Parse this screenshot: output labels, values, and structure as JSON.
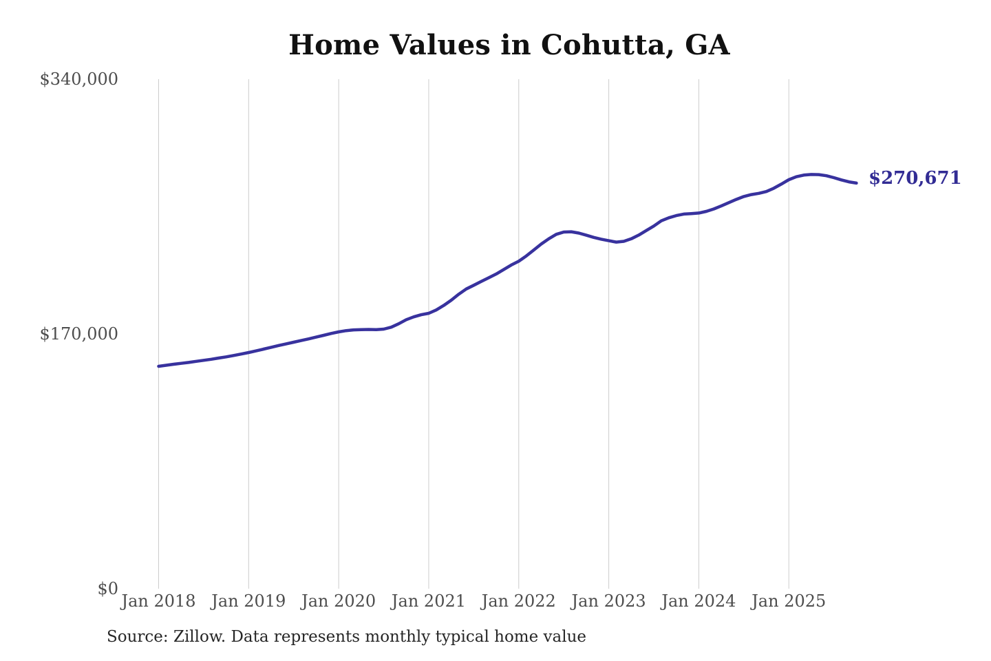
{
  "page": {
    "background": "#ffffff"
  },
  "source_note": "Source: Zillow. Data represents monthly typical home value",
  "colors": {
    "title": "#111111",
    "tick": "#4d4d4d",
    "source": "#262626",
    "gridline": "#cccccc",
    "line": "#38329e",
    "end_label": "#322c94"
  },
  "chart_data": {
    "type": "line",
    "title": "Home Values in Cohutta, GA",
    "series_name": "Monthly typical home value",
    "xlabel": "",
    "ylabel": "",
    "ylim": [
      0,
      340000
    ],
    "grid": "vertical-only",
    "legend": "none",
    "end_label": "$270,671",
    "end_value": 270671,
    "y_ticks": [
      {
        "label": "$340,000",
        "value": 340000
      },
      {
        "label": "$170,000",
        "value": 170000
      },
      {
        "label": "$0",
        "value": 0
      }
    ],
    "x_ticks": [
      {
        "label": "Jan 2018",
        "month_index": 0
      },
      {
        "label": "Jan 2019",
        "month_index": 12
      },
      {
        "label": "Jan 2020",
        "month_index": 24
      },
      {
        "label": "Jan 2021",
        "month_index": 36
      },
      {
        "label": "Jan 2022",
        "month_index": 48
      },
      {
        "label": "Jan 2023",
        "month_index": 60
      },
      {
        "label": "Jan 2024",
        "month_index": 72
      },
      {
        "label": "Jan 2025",
        "month_index": 84
      }
    ],
    "x": [
      "2018-01",
      "2018-02",
      "2018-03",
      "2018-04",
      "2018-05",
      "2018-06",
      "2018-07",
      "2018-08",
      "2018-09",
      "2018-10",
      "2018-11",
      "2018-12",
      "2019-01",
      "2019-02",
      "2019-03",
      "2019-04",
      "2019-05",
      "2019-06",
      "2019-07",
      "2019-08",
      "2019-09",
      "2019-10",
      "2019-11",
      "2019-12",
      "2020-01",
      "2020-02",
      "2020-03",
      "2020-04",
      "2020-05",
      "2020-06",
      "2020-07",
      "2020-08",
      "2020-09",
      "2020-10",
      "2020-11",
      "2020-12",
      "2021-01",
      "2021-02",
      "2021-03",
      "2021-04",
      "2021-05",
      "2021-06",
      "2021-07",
      "2021-08",
      "2021-09",
      "2021-10",
      "2021-11",
      "2021-12",
      "2022-01",
      "2022-02",
      "2022-03",
      "2022-04",
      "2022-05",
      "2022-06",
      "2022-07",
      "2022-08",
      "2022-09",
      "2022-10",
      "2022-11",
      "2022-12",
      "2023-01",
      "2023-02",
      "2023-03",
      "2023-04",
      "2023-05",
      "2023-06",
      "2023-07",
      "2023-08",
      "2023-09",
      "2023-10",
      "2023-11",
      "2023-12",
      "2024-01",
      "2024-02",
      "2024-03",
      "2024-04",
      "2024-05",
      "2024-06",
      "2024-07",
      "2024-08",
      "2024-09",
      "2024-10",
      "2024-11",
      "2024-12",
      "2025-01",
      "2025-02",
      "2025-03",
      "2025-04",
      "2025-05",
      "2025-06",
      "2025-07",
      "2025-08",
      "2025-09",
      "2025-10"
    ],
    "values": [
      148400,
      149100,
      149800,
      150400,
      151000,
      151700,
      152400,
      153100,
      153900,
      154700,
      155600,
      156600,
      157600,
      158700,
      159900,
      161100,
      162300,
      163400,
      164500,
      165600,
      166700,
      167900,
      169100,
      170300,
      171400,
      172200,
      172700,
      172900,
      173000,
      172900,
      173200,
      174500,
      176800,
      179500,
      181400,
      182800,
      183800,
      186000,
      189000,
      192500,
      196500,
      200000,
      202500,
      205000,
      207500,
      210000,
      213000,
      216000,
      218500,
      222000,
      226000,
      230000,
      233500,
      236500,
      238000,
      238200,
      237300,
      235900,
      234400,
      233200,
      232200,
      231300,
      231800,
      233500,
      236000,
      239000,
      242000,
      245500,
      247500,
      249000,
      250000,
      250300,
      250700,
      251800,
      253400,
      255400,
      257600,
      259800,
      261700,
      263000,
      263800,
      265000,
      267200,
      270000,
      272900,
      274900,
      276000,
      276400,
      276300,
      275600,
      274300,
      272800,
      271500,
      270671
    ]
  }
}
